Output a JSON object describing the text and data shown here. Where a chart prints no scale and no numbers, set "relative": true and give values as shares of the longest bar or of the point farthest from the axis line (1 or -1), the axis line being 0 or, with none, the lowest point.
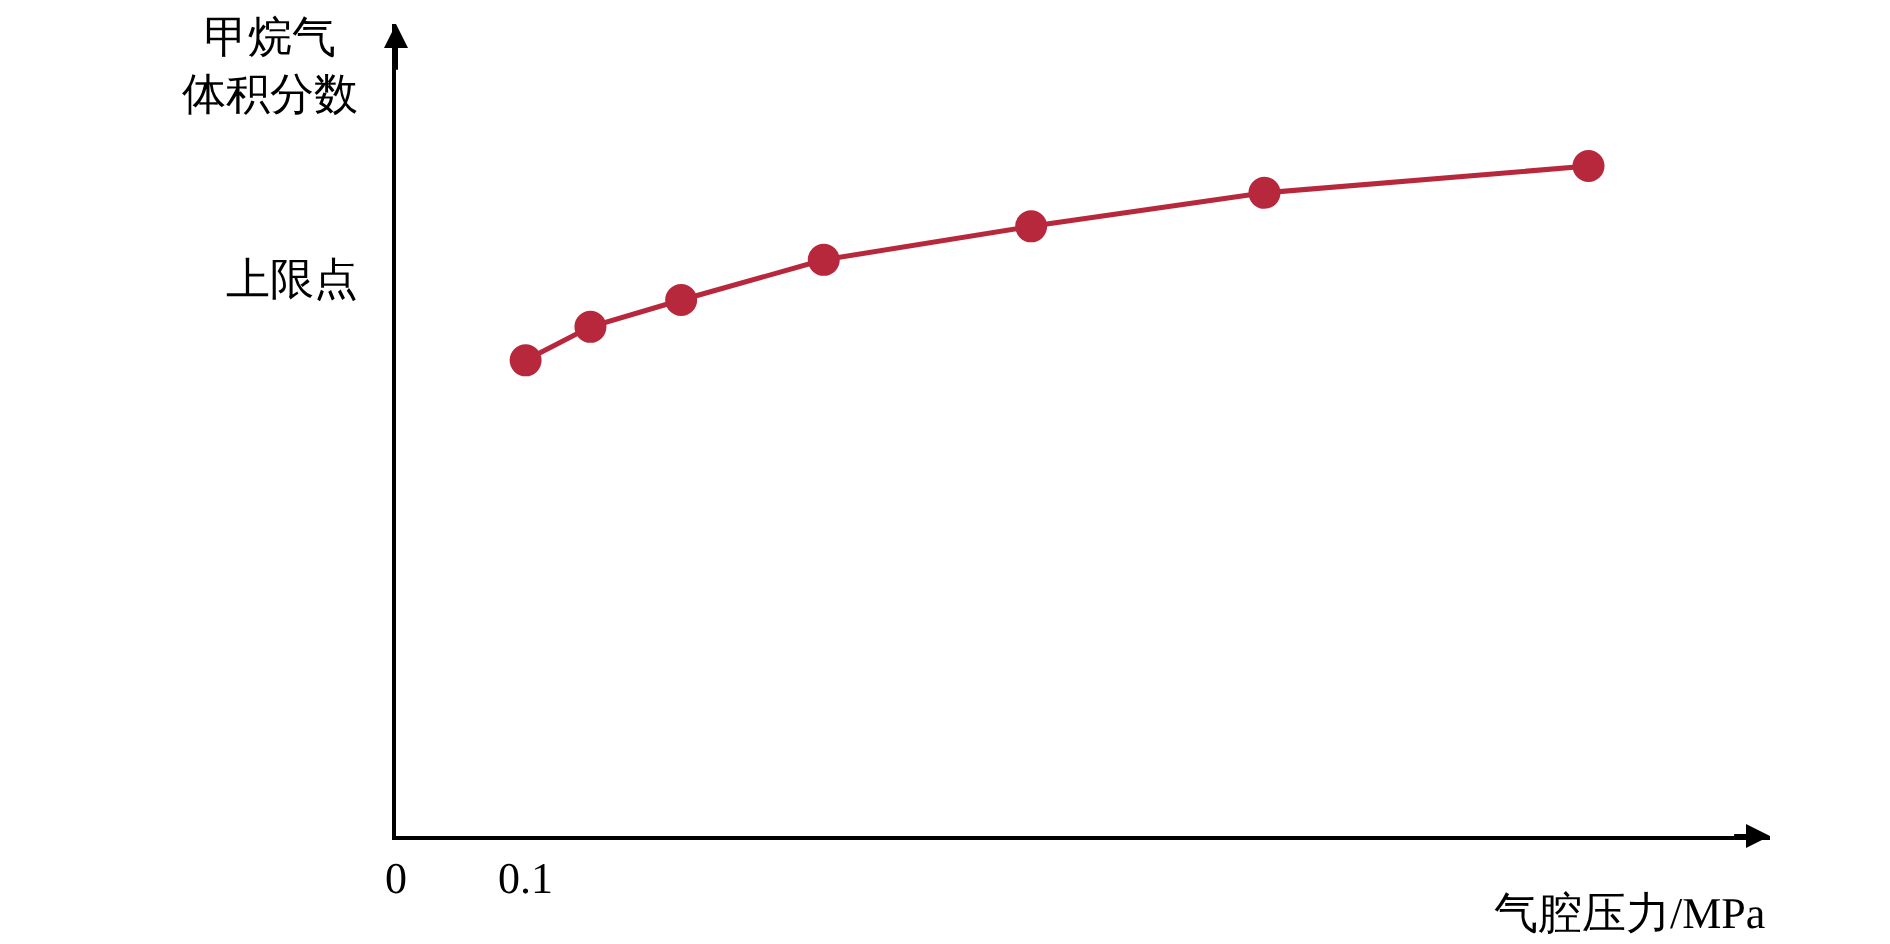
{
  "chart_data": {
    "type": "line",
    "relative": true,
    "xlabel": "气腔压力/MPa",
    "ylabel": "甲烷气体积分数",
    "annotations": [
      "上限点"
    ],
    "x": [
      0.1,
      0.15,
      0.22,
      0.33,
      0.49,
      0.67,
      0.92
    ],
    "series": [
      {
        "color": "#b8283c",
        "values": [
          0.71,
          0.76,
          0.8,
          0.86,
          0.91,
          0.96,
          1.0
        ]
      }
    ],
    "xlim": [
      0,
      1.06
    ],
    "xticks": [
      {
        "value": 0,
        "label": "0"
      },
      {
        "value": 0.1,
        "label": "0.1"
      }
    ],
    "tick_labels": "x",
    "marker": "circle",
    "line_style": "solid"
  }
}
